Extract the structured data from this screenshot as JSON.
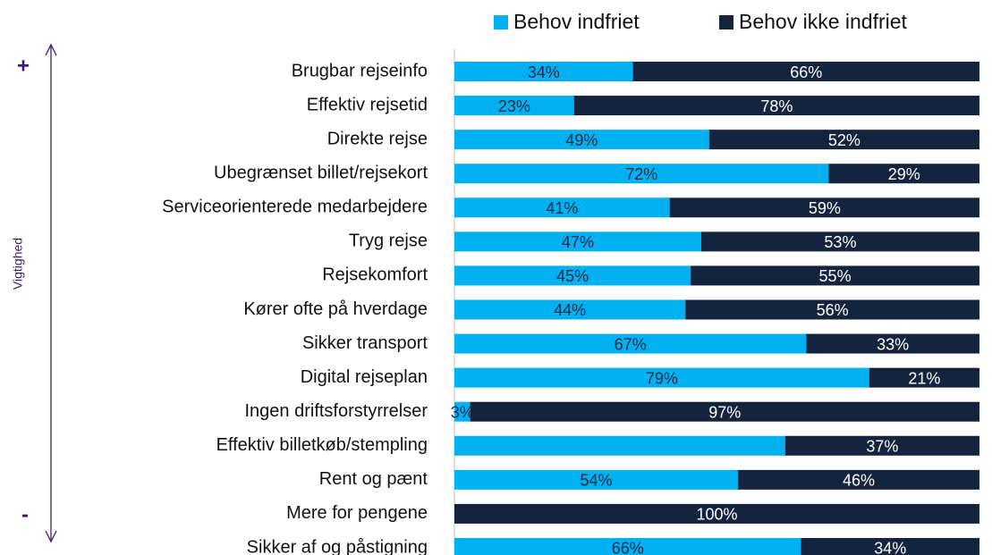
{
  "chart_data": {
    "type": "stacked_bar_horizontal",
    "y_axis_label": "Vigtighed",
    "annotations": [
      "+",
      "-"
    ],
    "categories": [
      "Brugbar rejseinfo",
      "Effektiv rejsetid",
      "Direkte rejse",
      "Ubegrænset billet/rejsekort",
      "Serviceorienterede medarbejdere",
      "Tryg rejse",
      "Rejsekomfort",
      "Kører ofte på hverdage",
      "Sikker transport",
      "Digital rejseplan",
      "Ingen driftsforstyrrelser",
      "Effektiv billetkøb/stempling",
      "Rent og pænt",
      "Mere for pengene",
      "Sikker af og påstigning"
    ],
    "series": [
      {
        "name": "Behov indfriet",
        "color": "#00b0f0",
        "values": [
          34,
          23,
          49,
          72,
          41,
          47,
          45,
          44,
          67,
          79,
          3,
          63,
          54,
          0,
          66
        ],
        "value_labels": [
          "34%",
          "23%",
          "49%",
          "72%",
          "41%",
          "47%",
          "45%",
          "44%",
          "67%",
          "79%",
          "3%",
          null,
          "54%",
          null,
          "66%"
        ]
      },
      {
        "name": "Behov ikke indfriet",
        "color": "#14243e",
        "values": [
          66,
          78,
          52,
          29,
          59,
          53,
          55,
          56,
          33,
          21,
          97,
          37,
          46,
          100,
          34
        ],
        "value_labels": [
          "66%",
          "78%",
          "52%",
          "29%",
          "59%",
          "53%",
          "55%",
          "56%",
          "33%",
          "21%",
          "97%",
          "37%",
          "46%",
          "100%",
          "34%"
        ]
      }
    ],
    "legend": "top"
  }
}
